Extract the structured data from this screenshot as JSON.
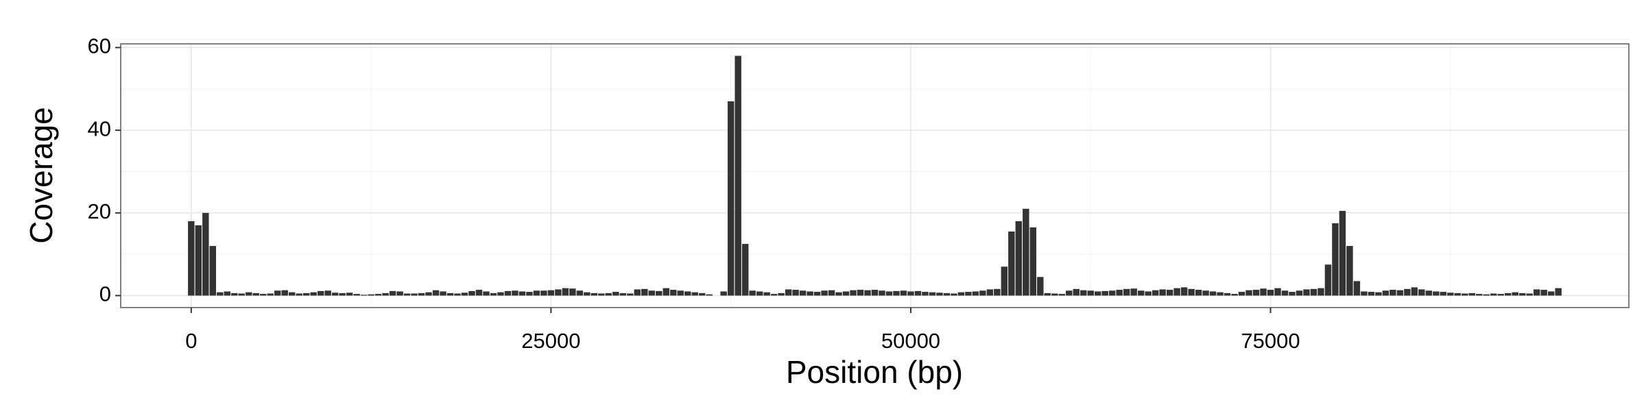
{
  "chart_data": {
    "type": "bar",
    "xlabel": "Position (bp)",
    "ylabel": "Coverage",
    "x": [
      0,
      500,
      1000,
      1500,
      2000,
      2500,
      3000,
      3500,
      4000,
      4500,
      5000,
      5500,
      6000,
      6500,
      7000,
      7500,
      8000,
      8500,
      9000,
      9500,
      10000,
      10500,
      11000,
      11500,
      12000,
      12500,
      13000,
      13500,
      14000,
      14500,
      15000,
      15500,
      16000,
      16500,
      17000,
      17500,
      18000,
      18500,
      19000,
      19500,
      20000,
      20500,
      21000,
      21500,
      22000,
      22500,
      23000,
      23500,
      24000,
      24500,
      25000,
      25500,
      26000,
      26500,
      27000,
      27500,
      28000,
      28500,
      29000,
      29500,
      30000,
      30500,
      31000,
      31500,
      32000,
      32500,
      33000,
      33500,
      34000,
      34500,
      35000,
      35500,
      36000,
      36500,
      37000,
      37500,
      38000,
      38500,
      39000,
      39500,
      40000,
      40500,
      41000,
      41500,
      42000,
      42500,
      43000,
      43500,
      44000,
      44500,
      45000,
      45500,
      46000,
      46500,
      47000,
      47500,
      48000,
      48500,
      49000,
      49500,
      50000,
      50500,
      51000,
      51500,
      52000,
      52500,
      53000,
      53500,
      54000,
      54500,
      55000,
      55500,
      56000,
      56500,
      57000,
      57500,
      58000,
      58500,
      59000,
      59500,
      60000,
      60500,
      61000,
      61500,
      62000,
      62500,
      63000,
      63500,
      64000,
      64500,
      65000,
      65500,
      66000,
      66500,
      67000,
      67500,
      68000,
      68500,
      69000,
      69500,
      70000,
      70500,
      71000,
      71500,
      72000,
      72500,
      73000,
      73500,
      74000,
      74500,
      75000,
      75500,
      76000,
      76500,
      77000,
      77500,
      78000,
      78500,
      79000,
      79500,
      80000,
      80500,
      81000,
      81500,
      82000,
      82500,
      83000,
      83500,
      84000,
      84500,
      85000,
      85500,
      86000,
      86500,
      87000,
      87500,
      88000,
      88500,
      89000,
      89500,
      90000,
      90500,
      91000,
      91500,
      92000,
      92500,
      93000,
      93500,
      94000,
      94500,
      95000
    ],
    "values": [
      18,
      17,
      20,
      12,
      0.8,
      1,
      0.6,
      0.5,
      0.8,
      0.6,
      0.4,
      0.5,
      1.2,
      1.3,
      0.8,
      0.5,
      0.6,
      0.8,
      1.1,
      1.2,
      0.7,
      0.6,
      0.7,
      0.4,
      0.2,
      0.3,
      0.4,
      0.6,
      1.1,
      1,
      0.5,
      0.5,
      0.6,
      0.8,
      1.3,
      1,
      0.6,
      0.5,
      0.7,
      1.1,
      1.4,
      1,
      0.6,
      0.8,
      1.1,
      1.2,
      1,
      0.9,
      1.2,
      1.2,
      1.3,
      1.5,
      1.8,
      1.7,
      1.2,
      0.8,
      0.6,
      0.5,
      0.6,
      0.9,
      0.6,
      0.5,
      1.5,
      1.6,
      1.2,
      1.1,
      1.8,
      1.4,
      1.2,
      1,
      0.8,
      0.6,
      0.3,
      0,
      1,
      47,
      58,
      12.5,
      1.2,
      1,
      0.8,
      0.4,
      0.6,
      1.5,
      1.4,
      1.2,
      1,
      0.9,
      1.2,
      1.3,
      0.8,
      1,
      1.3,
      1.4,
      1.3,
      1.4,
      1.2,
      1,
      1.1,
      1.2,
      1,
      1.1,
      0.9,
      0.8,
      0.7,
      0.6,
      0.5,
      0.8,
      0.9,
      1,
      1.2,
      1.5,
      1.6,
      7,
      15.5,
      18,
      21,
      16.5,
      4.5,
      0.6,
      0.5,
      0.4,
      1.2,
      1.6,
      1.3,
      1.2,
      1,
      1.1,
      1.2,
      1.4,
      1.6,
      1.7,
      1.2,
      1,
      1.3,
      1.5,
      1.4,
      1.8,
      2,
      1.6,
      1.4,
      1.2,
      1,
      0.8,
      0.6,
      0.4,
      0.9,
      1.3,
      1.4,
      1.7,
      1.4,
      1.8,
      1.2,
      0.9,
      1.2,
      1.5,
      1.6,
      1.8,
      7.5,
      17.5,
      20.5,
      12,
      3.5,
      1,
      0.9,
      0.8,
      1.2,
      1.4,
      1.3,
      1.6,
      2,
      1.5,
      1.2,
      1,
      0.9,
      0.7,
      0.6,
      0.5,
      0.6,
      0.4,
      0.3,
      0.5,
      0.4,
      0.6,
      0.8,
      0.6,
      0.5,
      1.5,
      1.4,
      1,
      1.8
    ],
    "color": "#333333",
    "xlim": [
      -4900,
      99900
    ],
    "xticks": [
      0,
      25000,
      50000,
      75000
    ],
    "xminor": [
      12500,
      37500,
      62500,
      87500
    ],
    "ylim": [
      -2.9,
      60.9
    ],
    "yticks": [
      0,
      20,
      40,
      60
    ],
    "yminor": [
      10,
      30,
      50
    ],
    "grid": true
  }
}
